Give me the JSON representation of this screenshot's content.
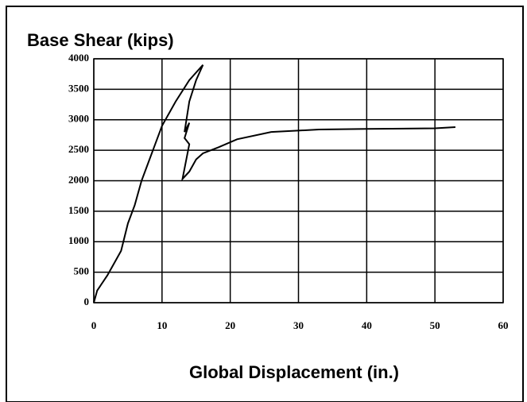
{
  "chart_data": {
    "type": "line",
    "title": "Base Shear (kips)",
    "x_label": "Global Displacement (in.)",
    "x": [
      0,
      0.5,
      2,
      3,
      4,
      5,
      6,
      7,
      8,
      9,
      10,
      12,
      14,
      16,
      15,
      14,
      13.3,
      14,
      13.3,
      14,
      13,
      14,
      15,
      16,
      18.3,
      21,
      26,
      33,
      40,
      50,
      53
    ],
    "values": [
      0,
      200,
      450,
      650,
      850,
      1300,
      1600,
      2000,
      2300,
      2600,
      2900,
      3300,
      3650,
      3900,
      3650,
      3300,
      2800,
      2950,
      2700,
      2600,
      2030,
      2150,
      2350,
      2450,
      2550,
      2680,
      2800,
      2840,
      2850,
      2860,
      2880
    ],
    "color": "#000000",
    "xlim": [
      0,
      60
    ],
    "xticks": [
      0,
      10,
      20,
      30,
      40,
      50,
      60
    ],
    "ylim": [
      0,
      4000
    ],
    "yticks": [
      0,
      500,
      1000,
      1500,
      2000,
      2500,
      3000,
      3500,
      4000
    ],
    "grid": true
  }
}
